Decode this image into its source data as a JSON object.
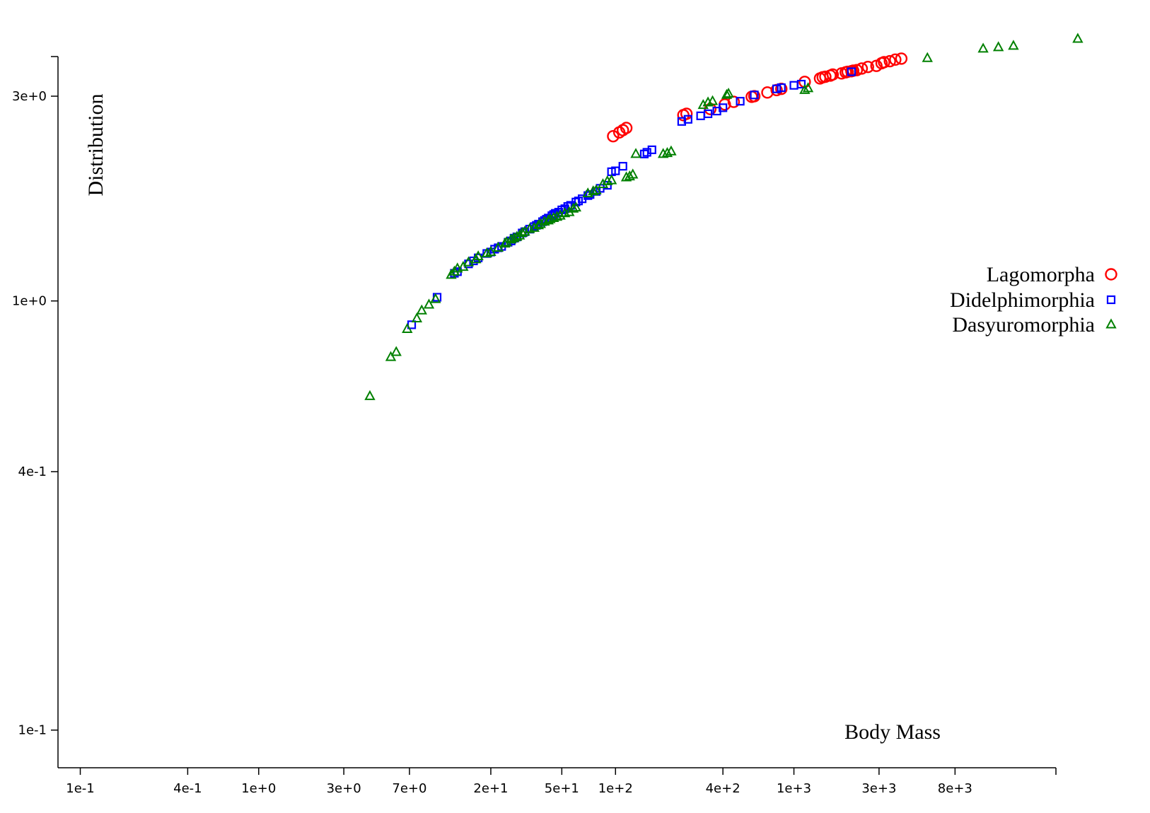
{
  "chart_data": {
    "type": "scatter",
    "title": "",
    "xlabel": "Body Mass",
    "ylabel": "Distribution",
    "x_scale": "log",
    "y_scale": "log",
    "xlim": [
      0.075,
      42000
    ],
    "ylim": [
      0.0817,
      4.08
    ],
    "x_ticks": [
      {
        "value": 0.1,
        "label": "1e-1"
      },
      {
        "value": 0.4,
        "label": "4e-1"
      },
      {
        "value": 1,
        "label": "1e+0"
      },
      {
        "value": 3,
        "label": "3e+0"
      },
      {
        "value": 7,
        "label": "7e+0"
      },
      {
        "value": 20,
        "label": "2e+1"
      },
      {
        "value": 50,
        "label": "5e+1"
      },
      {
        "value": 100,
        "label": "1e+2"
      },
      {
        "value": 400,
        "label": "4e+2"
      },
      {
        "value": 1000,
        "label": "1e+3"
      },
      {
        "value": 3000,
        "label": "3e+3"
      },
      {
        "value": 8000,
        "label": "8e+3"
      }
    ],
    "y_ticks": [
      {
        "value": 0.1,
        "label": "1e-1"
      },
      {
        "value": 0.4,
        "label": "4e-1"
      },
      {
        "value": 1,
        "label": "1e+0"
      },
      {
        "value": 3,
        "label": "3e+0"
      }
    ],
    "grid": false,
    "legend_position": "right",
    "series": [
      {
        "name": "Lagomorpha",
        "marker": "circle",
        "color": "#ff0000",
        "x": [
          97,
          105,
          110,
          115,
          240,
          250,
          340,
          410,
          460,
          580,
          600,
          710,
          800,
          850,
          1150,
          1400,
          1450,
          1500,
          1600,
          1650,
          1850,
          1950,
          2000,
          2100,
          2150,
          2250,
          2400,
          2600,
          2900,
          3100,
          3200,
          3450,
          3700,
          4000
        ],
        "y": [
          2.42,
          2.47,
          2.5,
          2.53,
          2.71,
          2.73,
          2.8,
          2.87,
          2.91,
          2.99,
          3.0,
          3.06,
          3.1,
          3.12,
          3.24,
          3.3,
          3.32,
          3.33,
          3.35,
          3.37,
          3.39,
          3.41,
          3.42,
          3.43,
          3.44,
          3.45,
          3.48,
          3.51,
          3.53,
          3.58,
          3.6,
          3.62,
          3.65,
          3.67
        ]
      },
      {
        "name": "Didelphimorphia",
        "marker": "square",
        "color": "#0000ff",
        "x": [
          7.2,
          10,
          12.5,
          13,
          15,
          16,
          17,
          19,
          20,
          21,
          22,
          23,
          25,
          26,
          27,
          28,
          30,
          31,
          33,
          35,
          36,
          37,
          39,
          40,
          41,
          42,
          44,
          45,
          46,
          48,
          50,
          52,
          54,
          56,
          60,
          62,
          65,
          70,
          72,
          78,
          82,
          90,
          95,
          100,
          110,
          145,
          150,
          160,
          235,
          255,
          300,
          330,
          370,
          400,
          500,
          600,
          800,
          850,
          1000,
          1100,
          2100
        ],
        "y": [
          0.88,
          1.02,
          1.16,
          1.17,
          1.22,
          1.24,
          1.26,
          1.29,
          1.3,
          1.32,
          1.33,
          1.34,
          1.37,
          1.38,
          1.4,
          1.41,
          1.44,
          1.45,
          1.47,
          1.49,
          1.5,
          1.51,
          1.53,
          1.54,
          1.55,
          1.56,
          1.58,
          1.59,
          1.6,
          1.61,
          1.63,
          1.64,
          1.66,
          1.67,
          1.7,
          1.71,
          1.73,
          1.76,
          1.77,
          1.8,
          1.83,
          1.86,
          2.0,
          2.01,
          2.06,
          2.2,
          2.22,
          2.25,
          2.62,
          2.65,
          2.7,
          2.73,
          2.77,
          2.82,
          2.92,
          3.02,
          3.12,
          3.14,
          3.18,
          3.2,
          3.42
        ]
      },
      {
        "name": "Dasyuromorphia",
        "marker": "triangle",
        "color": "#008000",
        "x": [
          4.2,
          5.5,
          5.9,
          6.8,
          7.7,
          8.2,
          9,
          9.8,
          12,
          12.5,
          13,
          14,
          15,
          16.5,
          17,
          19,
          20,
          22,
          24,
          24.5,
          26,
          27,
          28,
          29,
          30,
          31,
          33,
          35,
          37,
          38,
          40,
          42,
          43,
          45,
          47,
          49,
          52,
          55,
          58,
          60,
          70,
          75,
          78,
          85,
          90,
          95,
          115,
          120,
          125,
          130,
          185,
          195,
          205,
          310,
          330,
          350,
          420,
          430,
          1150,
          1200,
          5600,
          11500,
          14000,
          17000,
          39000
        ],
        "y": [
          0.6,
          0.74,
          0.76,
          0.86,
          0.91,
          0.95,
          0.98,
          1.01,
          1.15,
          1.17,
          1.19,
          1.2,
          1.23,
          1.25,
          1.27,
          1.29,
          1.3,
          1.33,
          1.36,
          1.37,
          1.39,
          1.4,
          1.41,
          1.42,
          1.44,
          1.45,
          1.47,
          1.48,
          1.5,
          1.51,
          1.53,
          1.54,
          1.55,
          1.56,
          1.57,
          1.58,
          1.6,
          1.61,
          1.64,
          1.65,
          1.78,
          1.8,
          1.81,
          1.87,
          1.9,
          1.91,
          1.94,
          1.95,
          1.97,
          2.2,
          2.2,
          2.21,
          2.23,
          2.86,
          2.9,
          2.92,
          3.02,
          3.04,
          3.1,
          3.13,
          3.68,
          3.87,
          3.9,
          3.93,
          4.08
        ]
      }
    ]
  }
}
